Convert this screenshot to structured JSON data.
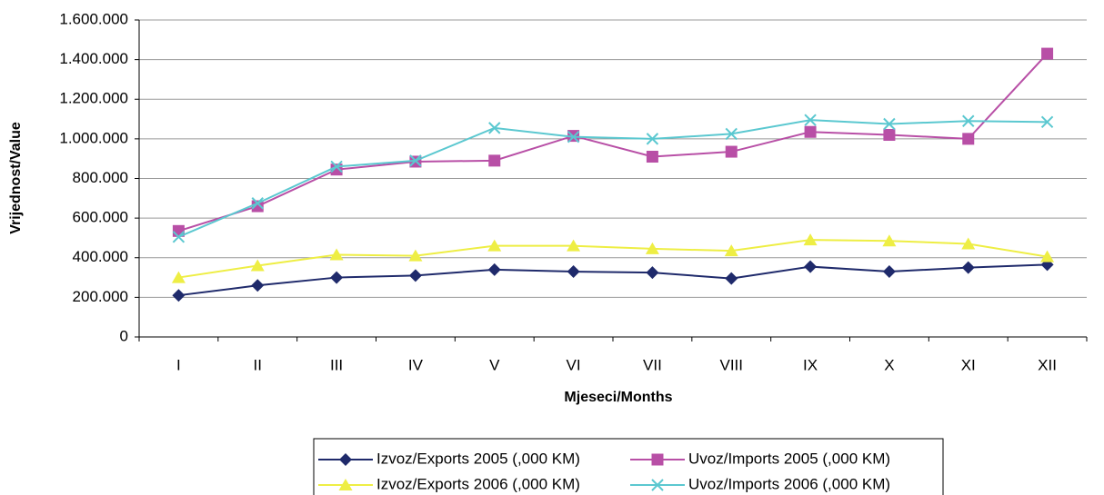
{
  "chart_data": {
    "type": "line",
    "xlabel": "Mjeseci/Months",
    "ylabel": "Vrijednost/Value",
    "categories": [
      "I",
      "II",
      "III",
      "IV",
      "V",
      "VI",
      "VII",
      "VIII",
      "IX",
      "X",
      "XI",
      "XII"
    ],
    "series": [
      {
        "name": "Izvoz/Exports 2005 (,000 KM)",
        "color": "#1f2a6b",
        "marker": "diamond",
        "values": [
          210000,
          260000,
          300000,
          310000,
          340000,
          330000,
          325000,
          295000,
          355000,
          330000,
          350000,
          365000
        ]
      },
      {
        "name": "Uvoz/Imports 2005 (,000 KM)",
        "color": "#b84fa6",
        "marker": "square",
        "values": [
          535000,
          660000,
          845000,
          885000,
          890000,
          1015000,
          910000,
          935000,
          1035000,
          1020000,
          1000000,
          1430000
        ]
      },
      {
        "name": "Izvoz/Exports 2006 (,000 KM)",
        "color": "#eeee44",
        "marker": "triangle",
        "values": [
          300000,
          360000,
          415000,
          410000,
          460000,
          460000,
          445000,
          435000,
          490000,
          485000,
          470000,
          405000
        ]
      },
      {
        "name": "Uvoz/Imports 2006 (,000 KM)",
        "color": "#5bc8d0",
        "marker": "x",
        "values": [
          505000,
          675000,
          860000,
          890000,
          1055000,
          1010000,
          1000000,
          1025000,
          1095000,
          1075000,
          1090000,
          1085000
        ]
      }
    ],
    "ylim": [
      0,
      1600000
    ],
    "yticks": [
      0,
      {
        "value": 200000,
        "label": "200.000"
      },
      {
        "value": 400000,
        "label": "400.000"
      },
      {
        "value": 600000,
        "label": "600.000"
      },
      {
        "value": 800000,
        "label": "800.000"
      },
      {
        "value": 1000000,
        "label": "1.000.000"
      },
      {
        "value": 1200000,
        "label": "1.200.000"
      },
      {
        "value": 1400000,
        "label": "1.400.000"
      },
      {
        "value": 1600000,
        "label": "1.600.000"
      }
    ],
    "grid": true,
    "legend": "bottom"
  }
}
